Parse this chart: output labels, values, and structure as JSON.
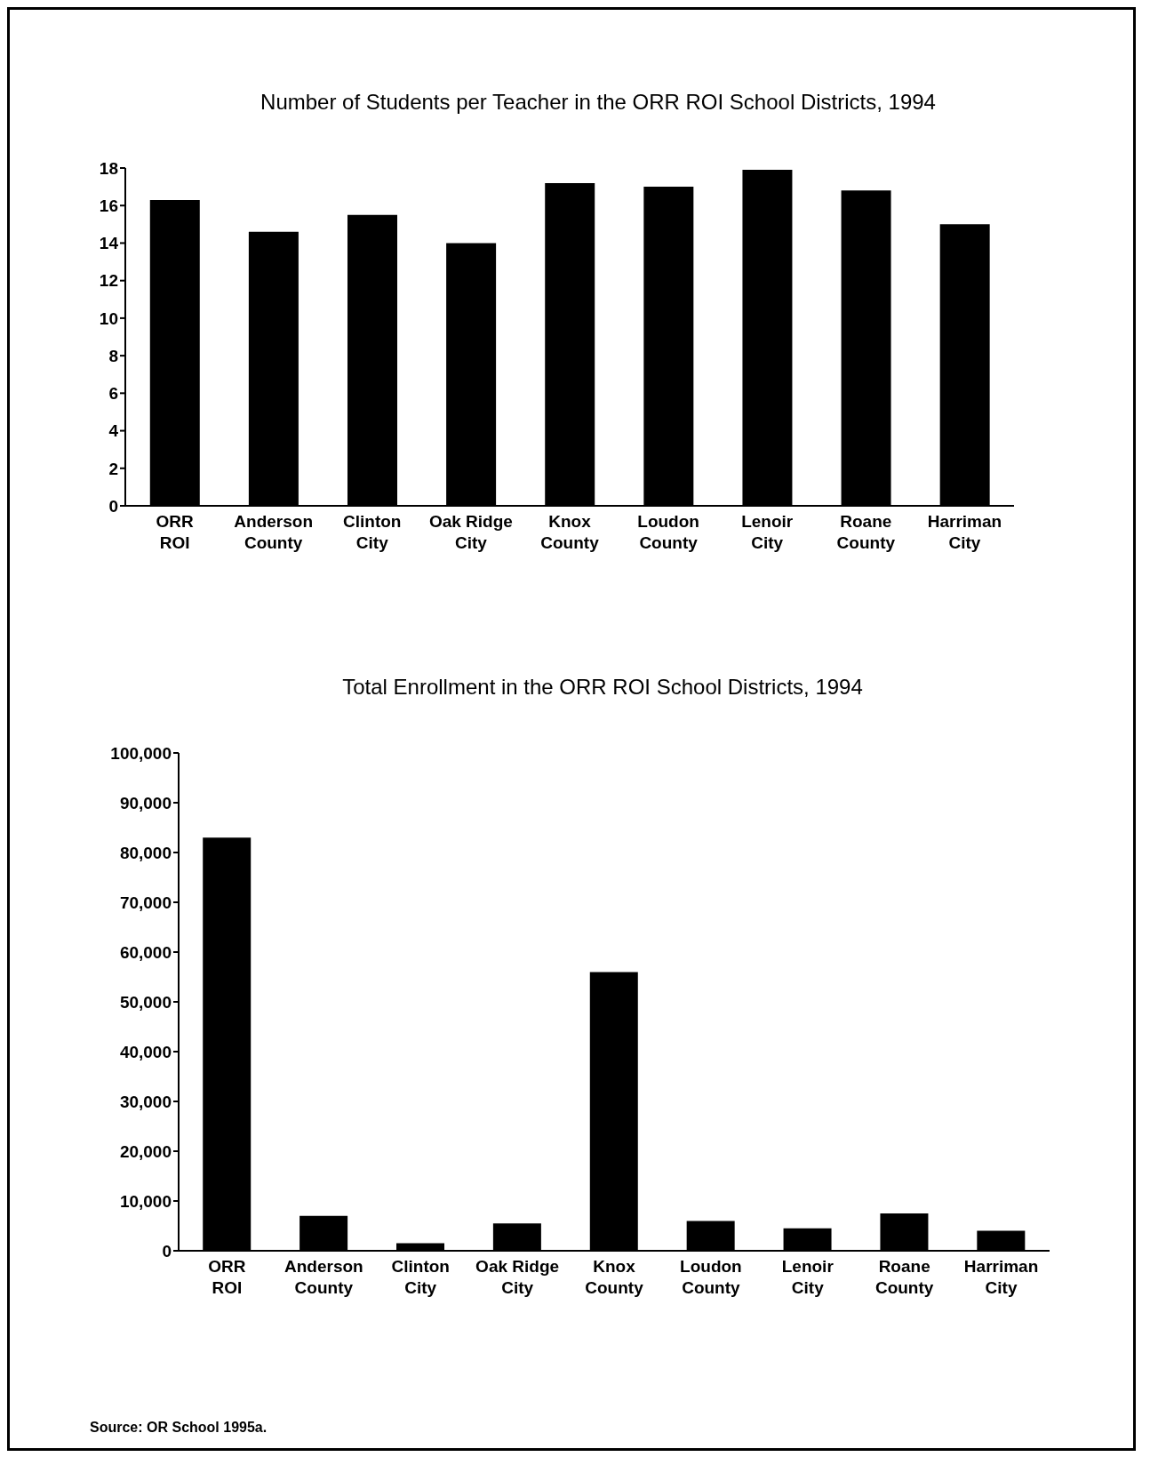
{
  "chart_data": [
    {
      "type": "bar",
      "title": "Number of Students per Teacher in the ORR ROI School Districts, 1994",
      "categories": [
        "ORR ROI",
        "Anderson County",
        "Clinton City",
        "Oak Ridge City",
        "Knox County",
        "Loudon County",
        "Lenoir City",
        "Roane County",
        "Harriman City"
      ],
      "values": [
        16.3,
        14.6,
        15.5,
        14.0,
        17.2,
        17.0,
        17.9,
        16.8,
        15.0
      ],
      "color": "#000000",
      "ylim": [
        0,
        18
      ],
      "yticks": [
        0,
        2,
        4,
        6,
        8,
        10,
        12,
        14,
        16,
        18
      ],
      "grid": false,
      "legend": false
    },
    {
      "type": "bar",
      "title": "Total Enrollment in the ORR ROI School Districts, 1994",
      "categories": [
        "ORR ROI",
        "Anderson County",
        "Clinton City",
        "Oak Ridge City",
        "Knox County",
        "Loudon County",
        "Lenoir City",
        "Roane County",
        "Harriman City"
      ],
      "values": [
        83000,
        7000,
        1500,
        5500,
        56000,
        6000,
        4500,
        7500,
        4000
      ],
      "color": "#000000",
      "ylim": [
        0,
        100000
      ],
      "yticks": [
        0,
        {
          "value": 10000,
          "label": "10,000"
        },
        {
          "value": 20000,
          "label": "20,000"
        },
        {
          "value": 30000,
          "label": "30,000"
        },
        {
          "value": 40000,
          "label": "40,000"
        },
        {
          "value": 50000,
          "label": "50,000"
        },
        {
          "value": 60000,
          "label": "60,000"
        },
        {
          "value": 70000,
          "label": "70,000"
        },
        {
          "value": 80000,
          "label": "80,000"
        },
        {
          "value": 90000,
          "label": "90,000"
        },
        {
          "value": 100000,
          "label": "100,000"
        }
      ],
      "grid": false,
      "legend": false,
      "annotations": [
        "Source: OR School 1995a."
      ]
    }
  ]
}
